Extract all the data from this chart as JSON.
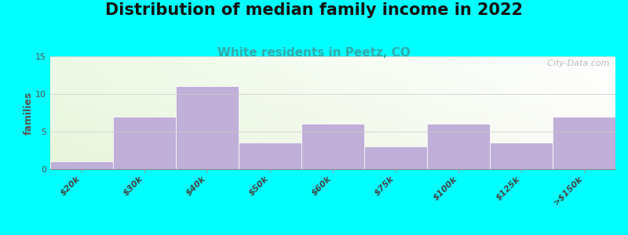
{
  "title": "Distribution of median family income in 2022",
  "subtitle": "White residents in Peetz, CO",
  "ylabel": "families",
  "categories": [
    "$20k",
    "$30k",
    "$40k",
    "$50k",
    "$60k",
    "$75k",
    "$100k",
    "$125k",
    ">$150k"
  ],
  "values": [
    1,
    7,
    11,
    3.5,
    6,
    3,
    6,
    3.5,
    7
  ],
  "bar_color": "#c0afd8",
  "bar_edge_color": "#d0c0e8",
  "background_color": "#00ffff",
  "plot_bg_color": "#f5f8ee",
  "ylim": [
    0,
    15
  ],
  "yticks": [
    0,
    5,
    10,
    15
  ],
  "title_fontsize": 15,
  "subtitle_fontsize": 11,
  "subtitle_color": "#33aaaa",
  "ylabel_fontsize": 9,
  "watermark": "  City-Data.com"
}
